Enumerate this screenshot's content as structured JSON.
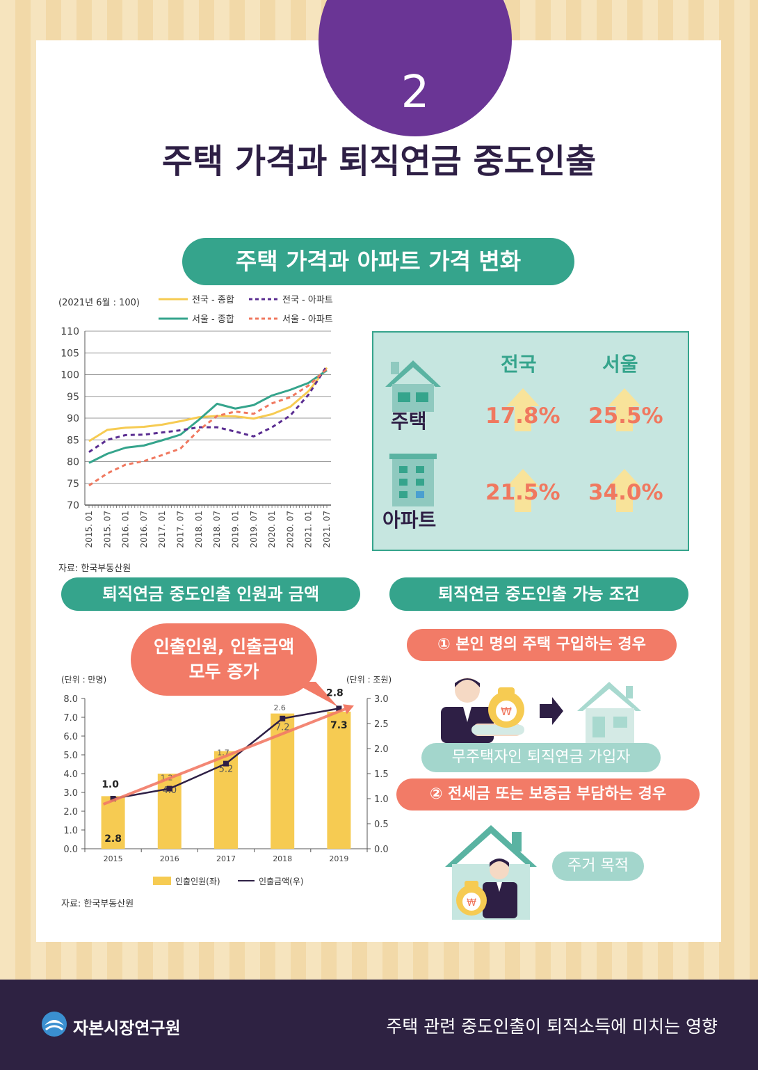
{
  "header": {
    "number": "2",
    "title": "주택 가격과 퇴직연금 중도인출"
  },
  "section1": {
    "pill": "주택 가격과 아파트 가격 변화",
    "unit": "(2021년 6월 : 100)",
    "source": "자료: 한국부동산원"
  },
  "price_box": {
    "col1": "전국",
    "col2": "서울",
    "row1": "주택",
    "row2": "아파트",
    "house_nat": "17.8%",
    "house_seoul": "25.5%",
    "apt_nat": "21.5%",
    "apt_seoul": "34.0%"
  },
  "section2": {
    "pill": "퇴직연금 중도인출 인원과 금액",
    "bubble_line1": "인출인원, 인출금액",
    "bubble_line2": "모두 증가",
    "unit_left": "(단위 : 만명)",
    "unit_right": "(단위 : 조원)",
    "source": "자료: 한국부동산원"
  },
  "section3": {
    "pill": "퇴직연금 중도인출 가능 조건",
    "cond1": "① 본인 명의 주택 구입하는 경우",
    "tag1": "무주택자인 퇴직연금 가입자",
    "cond2": "② 전세금 또는 보증금 부담하는 경우",
    "tag2": "주거 목적",
    "won": "₩"
  },
  "footer": {
    "brand": "자본시장연구원",
    "title": "주택 관련 중도인출이 퇴직소득에 미치는 영향"
  },
  "colors": {
    "purple": "#6a3595",
    "teal": "#35a48c",
    "coral": "#f27b67",
    "yellow": "#f6cb52",
    "navy": "#2e2242"
  },
  "chart_data": [
    {
      "type": "line",
      "x": [
        "2015. 01",
        "2015. 07",
        "2016. 01",
        "2016. 07",
        "2017. 01",
        "2017. 07",
        "2018. 01",
        "2018. 07",
        "2019. 01",
        "2019. 07",
        "2020. 01",
        "2020. 07",
        "2021. 01",
        "2021. 07"
      ],
      "ylim": [
        70,
        110
      ],
      "yticks": [
        70,
        75,
        80,
        85,
        90,
        95,
        100,
        105,
        110
      ],
      "grid": true,
      "series": [
        {
          "name": "전국 - 종합",
          "color": "#f6cb52",
          "dash": false,
          "values": [
            84.7,
            87.3,
            87.8,
            88.0,
            88.5,
            89.3,
            90.2,
            90.5,
            90.4,
            89.9,
            90.9,
            92.6,
            96.2,
            101.6
          ]
        },
        {
          "name": "서울 - 종합",
          "color": "#35a48c",
          "dash": false,
          "values": [
            79.7,
            81.8,
            83.2,
            83.7,
            84.9,
            86.2,
            89.6,
            93.3,
            92.2,
            93.0,
            95.2,
            96.5,
            98.1,
            101.0
          ]
        },
        {
          "name": "전국 - 아파트",
          "color": "#5a2d91",
          "dash": true,
          "values": [
            82.2,
            85.0,
            86.1,
            86.2,
            86.7,
            87.2,
            87.9,
            87.9,
            86.9,
            85.8,
            87.9,
            90.6,
            95.4,
            102.0
          ]
        },
        {
          "name": "서울 - 아파트",
          "color": "#f0785f",
          "dash": true,
          "values": [
            74.5,
            77.3,
            79.3,
            80.1,
            81.5,
            83.0,
            87.2,
            90.5,
            91.5,
            91.0,
            93.4,
            94.8,
            97.5,
            101.3
          ]
        }
      ]
    },
    {
      "type": "bar",
      "categories": [
        "2015",
        "2016",
        "2017",
        "2018",
        "2019"
      ],
      "series": [
        {
          "name": "인출인원(좌)",
          "axis": "left",
          "color": "#f6cb52",
          "values": [
            2.8,
            4.0,
            5.2,
            7.2,
            7.3
          ]
        },
        {
          "name": "인출금액(우)",
          "axis": "right",
          "type": "line",
          "color": "#2e1f45",
          "values": [
            1.0,
            1.2,
            1.7,
            2.6,
            2.8
          ]
        }
      ],
      "ylim_left": [
        0,
        8
      ],
      "yticks_left": [
        "0.0",
        "1.0",
        "2.0",
        "3.0",
        "4.0",
        "5.0",
        "6.0",
        "7.0",
        "8.0"
      ],
      "ylim_right": [
        0,
        3
      ],
      "yticks_right": [
        "0.0",
        "0.5",
        "1.0",
        "1.5",
        "2.0",
        "2.5",
        "3.0"
      ]
    }
  ]
}
